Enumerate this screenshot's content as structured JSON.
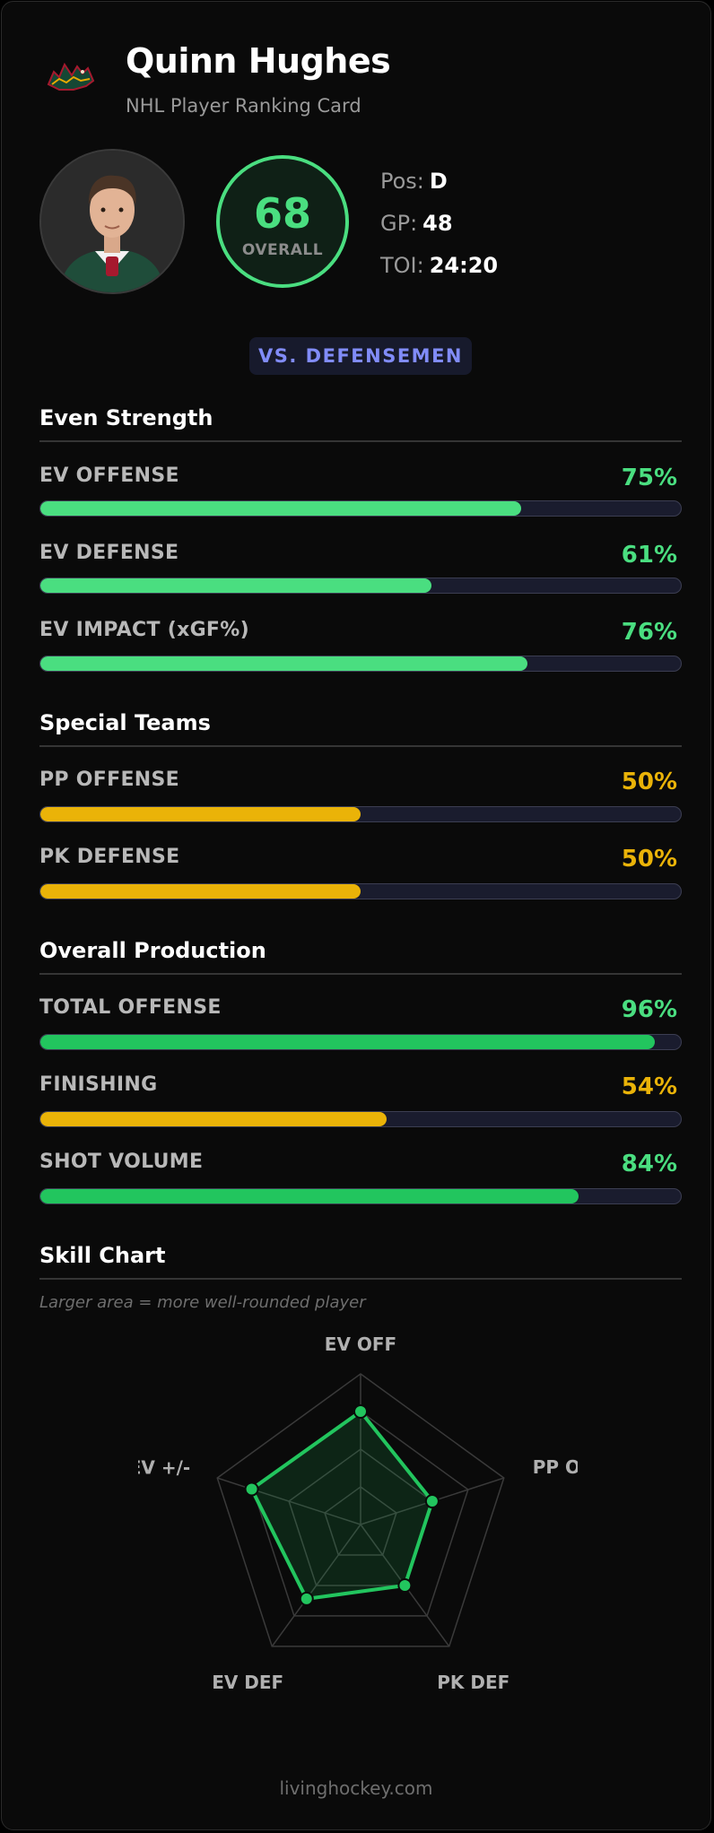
{
  "header": {
    "team_logo_icon": "wild-logo-icon",
    "player_name": "Quinn Hughes",
    "subtitle": "NHL Player Ranking Card"
  },
  "overall": {
    "value": "68",
    "label": "OVERALL",
    "color": "#4ade80"
  },
  "meta": [
    {
      "label": "Pos:",
      "value": "D"
    },
    {
      "label": "GP:",
      "value": "48"
    },
    {
      "label": "TOI:",
      "value": "24:20"
    }
  ],
  "comparison_badge": "VS. DEFENSEMEN",
  "sections": [
    {
      "title": "Even Strength",
      "stats": [
        {
          "label": "EV OFFENSE",
          "value": "75%",
          "percent": 75,
          "color": "#4ade80"
        },
        {
          "label": "EV DEFENSE",
          "value": "61%",
          "percent": 61,
          "color": "#4ade80"
        },
        {
          "label": "EV IMPACT (xGF%)",
          "value": "76%",
          "percent": 76,
          "color": "#4ade80"
        }
      ]
    },
    {
      "title": "Special Teams",
      "stats": [
        {
          "label": "PP OFFENSE",
          "value": "50%",
          "percent": 50,
          "color": "#eab308"
        },
        {
          "label": "PK DEFENSE",
          "value": "50%",
          "percent": 50,
          "color": "#eab308"
        }
      ]
    },
    {
      "title": "Overall Production",
      "stats": [
        {
          "label": "TOTAL OFFENSE",
          "value": "96%",
          "percent": 96,
          "color": "#22c55e"
        },
        {
          "label": "FINISHING",
          "value": "54%",
          "percent": 54,
          "color": "#eab308"
        },
        {
          "label": "SHOT VOLUME",
          "value": "84%",
          "percent": 84,
          "color": "#22c55e"
        }
      ]
    }
  ],
  "skill_chart": {
    "title": "Skill Chart",
    "note": "Larger area = more well-rounded player",
    "axes": [
      "EV OFF",
      "PP OFF",
      "PK DEF",
      "EV DEF",
      "EV +/-"
    ],
    "values": [
      75,
      50,
      50,
      61,
      76
    ],
    "max": 100,
    "color": "#22c55e"
  },
  "footer": "livinghockey.com"
}
